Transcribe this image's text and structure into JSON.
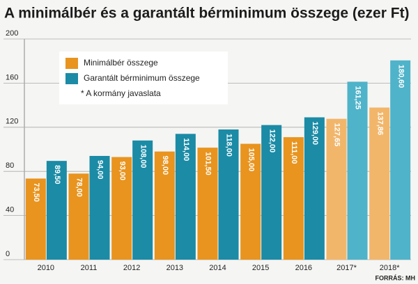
{
  "chart_data": {
    "type": "bar",
    "title": "A minimálbér és a garantált bérminimum összege (ezer Ft)",
    "categories": [
      "2010",
      "2011",
      "2012",
      "2013",
      "2014",
      "2015",
      "2016",
      "2017*",
      "2018*"
    ],
    "series": [
      {
        "name": "Minimálbér összege",
        "color": "#e8941f",
        "colors": [
          "#e8941f",
          "#e8941f",
          "#e8941f",
          "#e8941f",
          "#e8941f",
          "#e8941f",
          "#e8941f",
          "#f2b66b",
          "#f2b66b"
        ],
        "values": [
          73.5,
          78,
          93,
          98,
          101.5,
          105,
          111,
          127.65,
          137.86
        ],
        "value_labels": [
          "73,50",
          "78,00",
          "93,00",
          "98,00",
          "101,50",
          "105,00",
          "111,00",
          "127,65",
          "137,86"
        ]
      },
      {
        "name": "Garantált bérminimum összege",
        "color": "#1b8ba6",
        "colors": [
          "#1b8ba6",
          "#1b8ba6",
          "#1b8ba6",
          "#1b8ba6",
          "#1b8ba6",
          "#1b8ba6",
          "#1b8ba6",
          "#4fb3c9",
          "#4fb3c9"
        ],
        "values": [
          89.5,
          94,
          108,
          114,
          118,
          122,
          129,
          161.25,
          180.6
        ],
        "value_labels": [
          "89,50",
          "94,00",
          "108,00",
          "114,00",
          "118,00",
          "122,00",
          "129,00",
          "161,25",
          "180,60"
        ]
      }
    ],
    "note": "* A kormány javaslata",
    "source": "FORRÁS: MH",
    "ylim": [
      0,
      200
    ],
    "yticks": [
      0,
      40,
      80,
      120,
      160,
      200
    ],
    "grid": true
  }
}
